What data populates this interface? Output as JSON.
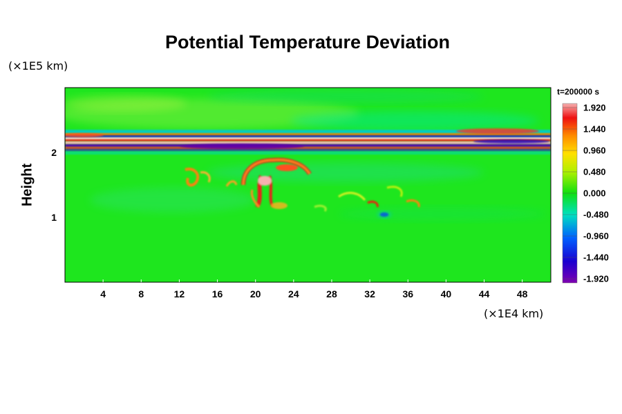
{
  "chart_data": {
    "type": "heatmap",
    "title": "Potential Temperature Deviation",
    "xlabel": "",
    "ylabel": "Height",
    "x_unit": "(×1E4 km)",
    "y_unit": "(×1E5 km)",
    "time_label": "t=200000 s",
    "xlim": [
      0,
      51
    ],
    "ylim": [
      0,
      3
    ],
    "x_ticks": [
      "4",
      "8",
      "12",
      "16",
      "20",
      "24",
      "28",
      "32",
      "36",
      "40",
      "44",
      "48"
    ],
    "y_ticks": [
      "1",
      "2"
    ],
    "colorbar": {
      "min": -1.92,
      "max": 1.92,
      "labels": [
        "1.920",
        "1.440",
        "0.960",
        "0.480",
        "0.000",
        "-0.480",
        "-0.960",
        "-1.440",
        "-1.920"
      ]
    },
    "features": [
      {
        "desc": "layered band of strong positive/negative anomalies",
        "y_range": [
          1.95,
          2.25
        ]
      },
      {
        "desc": "rising plume with warm anomalies",
        "x_center": 21.5,
        "y_range": [
          1.1,
          1.9
        ]
      },
      {
        "desc": "cold anomaly spot",
        "x": 33.5,
        "y": 1.05
      }
    ],
    "colors": {
      "background_field": "#1ee61e",
      "warm": "#e8201a",
      "cold": "#5a00b0"
    }
  }
}
